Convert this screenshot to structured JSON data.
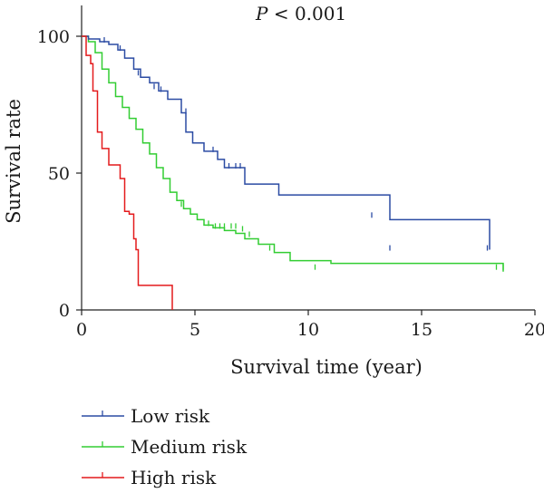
{
  "chart_data": {
    "type": "line",
    "annotation": {
      "italic": "P",
      "rest": " < 0.001"
    },
    "xlabel": "Survival time (year)",
    "ylabel": "Survival rate",
    "xlim": [
      0,
      20
    ],
    "ylim": [
      0,
      100
    ],
    "xticks": [
      "0",
      "5",
      "10",
      "15",
      "20"
    ],
    "yticks": [
      "0",
      "50",
      "100"
    ],
    "grid": false,
    "legend_position": "bottom-left",
    "series": [
      {
        "name": "Low risk",
        "color": "#2b4ba3",
        "points": [
          [
            0,
            100
          ],
          [
            0.3,
            99
          ],
          [
            0.8,
            98
          ],
          [
            1.2,
            97
          ],
          [
            1.6,
            95
          ],
          [
            1.9,
            92
          ],
          [
            2.3,
            88
          ],
          [
            2.6,
            85
          ],
          [
            3,
            83
          ],
          [
            3.4,
            80
          ],
          [
            3.8,
            77
          ],
          [
            4.4,
            72
          ],
          [
            4.6,
            65
          ],
          [
            4.9,
            61
          ],
          [
            5.4,
            58
          ],
          [
            6,
            55
          ],
          [
            6.3,
            52
          ],
          [
            7.2,
            46
          ],
          [
            8.7,
            42
          ],
          [
            13.6,
            33
          ],
          [
            18.0,
            22
          ]
        ],
        "censor": [
          [
            1.0,
            98
          ],
          [
            1.7,
            95
          ],
          [
            2.5,
            86
          ],
          [
            3.2,
            81
          ],
          [
            3.5,
            80
          ],
          [
            4.6,
            72
          ],
          [
            5.8,
            58
          ],
          [
            6.5,
            52
          ],
          [
            6.8,
            52
          ],
          [
            7.0,
            52
          ],
          [
            12.8,
            34
          ],
          [
            13.6,
            22
          ],
          [
            17.9,
            22
          ]
        ]
      },
      {
        "name": "Medium risk",
        "color": "#32cd32",
        "points": [
          [
            0,
            100
          ],
          [
            0.3,
            98
          ],
          [
            0.6,
            94
          ],
          [
            0.9,
            88
          ],
          [
            1.2,
            83
          ],
          [
            1.5,
            78
          ],
          [
            1.8,
            74
          ],
          [
            2.1,
            70
          ],
          [
            2.4,
            66
          ],
          [
            2.7,
            61
          ],
          [
            3.0,
            57
          ],
          [
            3.3,
            52
          ],
          [
            3.6,
            48
          ],
          [
            3.9,
            43
          ],
          [
            4.2,
            40
          ],
          [
            4.5,
            37
          ],
          [
            4.8,
            35
          ],
          [
            5.1,
            33
          ],
          [
            5.4,
            31
          ],
          [
            5.8,
            30
          ],
          [
            6.3,
            29
          ],
          [
            6.8,
            28
          ],
          [
            7.2,
            26
          ],
          [
            7.8,
            24
          ],
          [
            8.5,
            21
          ],
          [
            9.2,
            18
          ],
          [
            11,
            17
          ],
          [
            18.6,
            14
          ]
        ],
        "censor": [
          [
            4.4,
            38
          ],
          [
            5.6,
            31
          ],
          [
            5.9,
            30
          ],
          [
            6.1,
            30
          ],
          [
            6.3,
            30
          ],
          [
            6.6,
            30
          ],
          [
            6.8,
            30
          ],
          [
            7.1,
            29
          ],
          [
            7.4,
            27
          ],
          [
            8.3,
            22
          ],
          [
            10.3,
            15
          ],
          [
            18.3,
            15
          ],
          [
            18.6,
            15
          ]
        ]
      },
      {
        "name": "High risk",
        "color": "#e41a1c",
        "points": [
          [
            0,
            100
          ],
          [
            0.2,
            93
          ],
          [
            0.4,
            90
          ],
          [
            0.5,
            80
          ],
          [
            0.7,
            65
          ],
          [
            0.9,
            59
          ],
          [
            1.2,
            53
          ],
          [
            1.7,
            48
          ],
          [
            1.9,
            36
          ],
          [
            2.1,
            35
          ],
          [
            2.3,
            26
          ],
          [
            2.4,
            22
          ],
          [
            2.5,
            9
          ],
          [
            4.0,
            0
          ]
        ],
        "censor": []
      }
    ]
  }
}
